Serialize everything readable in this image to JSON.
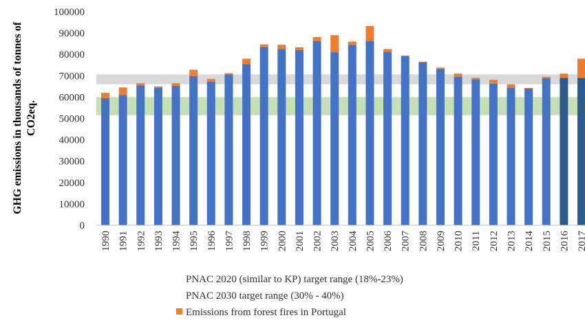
{
  "chart_data": {
    "type": "stacked_bar",
    "ylabel": [
      "GHG emissions in thousands of tonnes of",
      "CO2eq."
    ],
    "categories": [
      "1990",
      "1991",
      "1992",
      "1993",
      "1994",
      "1995",
      "1996",
      "1997",
      "1998",
      "1999",
      "2000",
      "2001",
      "2002",
      "2003",
      "2004",
      "2005",
      "2006",
      "2007",
      "2008",
      "2009",
      "2010",
      "2011",
      "2012",
      "2013",
      "2014",
      "2015",
      "2016",
      "2017"
    ],
    "series": [
      {
        "name": null,
        "color": "#4472c4",
        "bar_colors": [
          "#4472c4",
          "#4472c4",
          "#4472c4",
          "#4472c4",
          "#4472c4",
          "#4472c4",
          "#4472c4",
          "#4472c4",
          "#4472c4",
          "#4472c4",
          "#4472c4",
          "#4472c4",
          "#4472c4",
          "#4472c4",
          "#4472c4",
          "#4472c4",
          "#4472c4",
          "#4472c4",
          "#4472c4",
          "#4472c4",
          "#4472c4",
          "#4472c4",
          "#4472c4",
          "#4472c4",
          "#4472c4",
          "#4472c4",
          "#2f5c8f",
          "#2f5c8f"
        ],
        "values": [
          59500,
          61000,
          65500,
          64300,
          65300,
          69800,
          67300,
          70600,
          75500,
          83500,
          82500,
          82000,
          86300,
          81000,
          84500,
          86300,
          81300,
          79200,
          76300,
          73200,
          69500,
          68300,
          66300,
          64300,
          64000,
          68800,
          69000,
          69000
        ]
      },
      {
        "name": "Emissions from forest fires in Portugal",
        "color": "#ed7d31",
        "values": [
          2500,
          3500,
          1000,
          700,
          1200,
          3000,
          1200,
          600,
          2500,
          1200,
          2000,
          1300,
          1800,
          8000,
          1500,
          7000,
          1200,
          300,
          300,
          600,
          1500,
          700,
          1800,
          1700,
          300,
          700,
          2000,
          9000
        ]
      }
    ],
    "bands": [
      {
        "name": "PNAC 2020 (similar to KP) target range (18%-23%)",
        "color": "#d9d9d9",
        "range": [
          66000,
          70700
        ]
      },
      {
        "name": "PNAC 2030 target range (30% - 40%)",
        "color": "#c5e0b4",
        "range": [
          51500,
          60000
        ]
      }
    ],
    "ylim": [
      0,
      100000
    ],
    "yticks": [
      0,
      10000,
      20000,
      30000,
      40000,
      50000,
      60000,
      70000,
      80000,
      90000,
      100000
    ]
  }
}
